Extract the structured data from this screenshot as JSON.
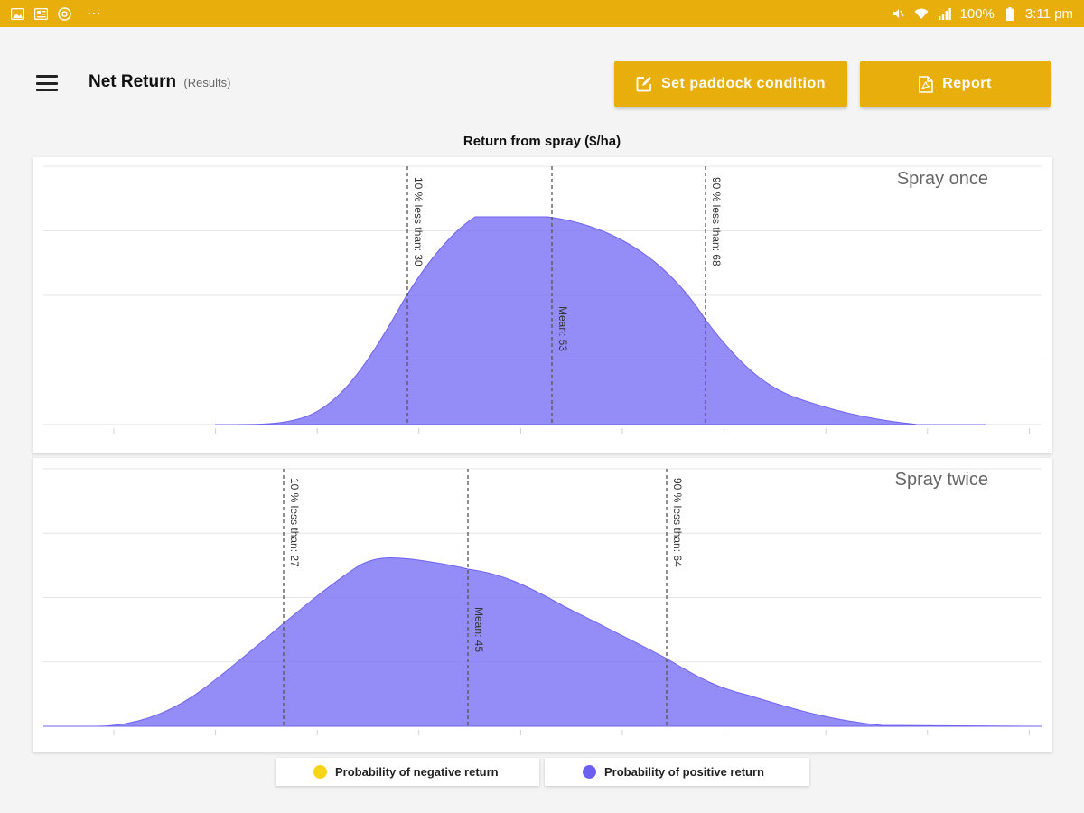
{
  "status_bar": {
    "battery": "100%",
    "time": "3:11 pm",
    "left_icons": [
      "gallery-icon",
      "news-icon",
      "chrome-icon",
      "more-dots-icon"
    ],
    "right_icons": [
      "mute-icon",
      "wifi-icon",
      "signal-icon",
      "battery-icon"
    ]
  },
  "header": {
    "title": "Net Return",
    "subtitle": "(Results)",
    "paddock_button": "Set paddock condition",
    "report_button": "Report"
  },
  "colors": {
    "accent": "#e8ae0c",
    "positive": "#7b70f5",
    "negative": "#f7d418"
  },
  "chart_data": {
    "type": "area",
    "title": "Return from spray ($/ha)",
    "grid": true,
    "panels": [
      {
        "label": "Spray once",
        "markers": [
          {
            "kind": "p10",
            "label": "10 % less than: 30"
          },
          {
            "kind": "mean",
            "label": "Mean: 53"
          },
          {
            "kind": "p90",
            "label": "90 % less than: 68"
          }
        ]
      },
      {
        "label": "Spray twice",
        "markers": [
          {
            "kind": "p10",
            "label": "10 % less than: 27"
          },
          {
            "kind": "mean",
            "label": "Mean: 45"
          },
          {
            "kind": "p90",
            "label": "90 % less than: 64"
          }
        ]
      }
    ]
  },
  "legend": [
    {
      "label": "Probability of negative return",
      "color": "#f7d418"
    },
    {
      "label": "Probability of positive return",
      "color": "#6d5ff0"
    }
  ]
}
